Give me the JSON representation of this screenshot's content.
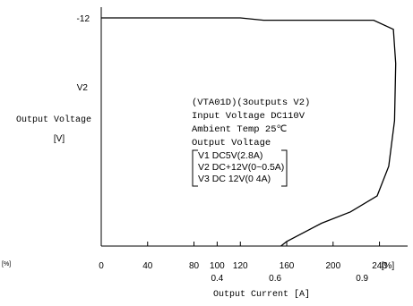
{
  "chart_data": {
    "type": "line",
    "title": "",
    "ylabel": "Output Voltage",
    "ylabel_unit": "[V]",
    "series_label": "V2",
    "y_tick_labels": [
      "-12"
    ],
    "y_left_unit_label": "[%]",
    "xlabel": "Output Current [A]",
    "x_percent_ticks": [
      0,
      40,
      80,
      100,
      120,
      160,
      200,
      240
    ],
    "x_percent_unit": "[%]",
    "x_current_ticks": [
      {
        "percent": 100,
        "label": "0.4"
      },
      {
        "percent": 150,
        "label": "0.6"
      },
      {
        "percent": 225,
        "label": "0.9"
      }
    ],
    "xlim_percent": [
      0,
      260
    ],
    "series": [
      {
        "x_percent": [
          0,
          120,
          140,
          235,
          252,
          254,
          253,
          248,
          238,
          215,
          190,
          160,
          155
        ],
        "y_from_top": [
          0.0,
          0.0,
          0.01,
          0.01,
          0.05,
          0.2,
          0.45,
          0.65,
          0.78,
          0.85,
          0.9,
          0.98,
          1.0
        ]
      }
    ],
    "annotation": {
      "lines": [
        "(VTA01D)(3outputs V2)",
        "Input Voltage DC110V",
        "Ambient Temp   25℃",
        "Output Voltage"
      ],
      "bracket_lines": [
        "V1 DC5V(2.8A)",
        "V2 DC+12V(0~0.5A)",
        "V3 DC 12V(0 4A)"
      ]
    }
  }
}
